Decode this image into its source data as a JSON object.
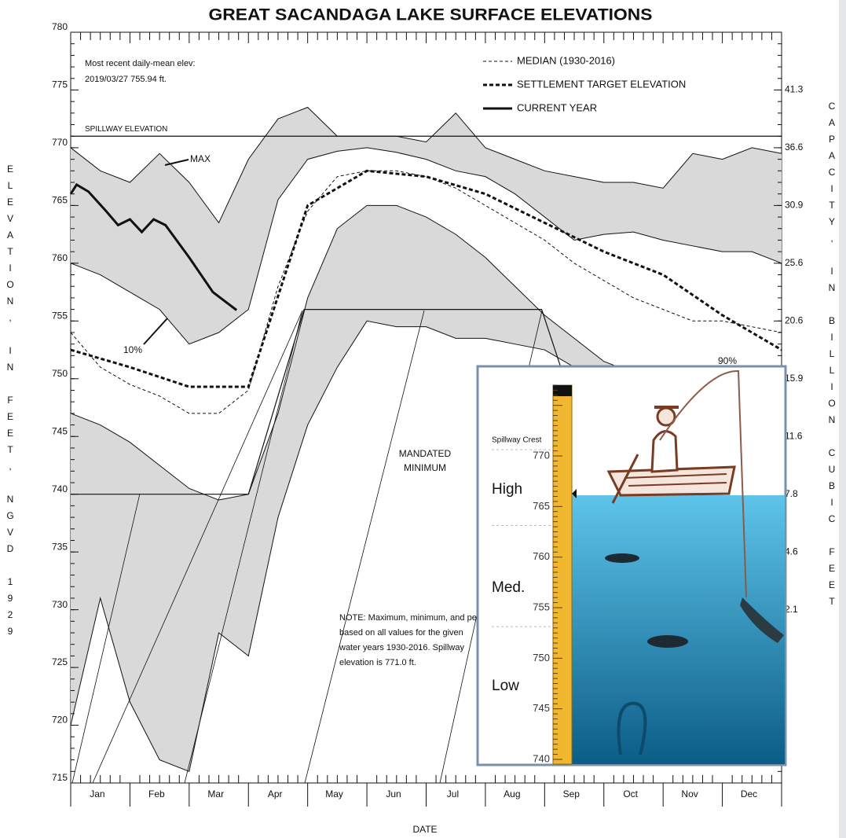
{
  "chart_data": {
    "type": "line",
    "title": "GREAT SACANDAGA LAKE SURFACE ELEVATIONS",
    "y_label": "ELEVATION, IN FEET, NGVD 1929",
    "y2_label": "CAPACITY, IN BILLION CUBIC FEET",
    "x_label": "DATE",
    "categories": [
      "Jan",
      "Feb",
      "Mar",
      "Apr",
      "May",
      "Jun",
      "Jul",
      "Aug",
      "Sep",
      "Oct",
      "Nov",
      "Dec"
    ],
    "ylim": [
      715,
      780
    ],
    "yticks": [
      715,
      720,
      725,
      730,
      735,
      740,
      745,
      750,
      755,
      760,
      765,
      770,
      775,
      780
    ],
    "capacity_ticks": [
      {
        "elevation": 775,
        "capacity": 41.3
      },
      {
        "elevation": 770,
        "capacity": 36.6
      },
      {
        "elevation": 765,
        "capacity": 30.9
      },
      {
        "elevation": 760,
        "capacity": 25.6
      },
      {
        "elevation": 755,
        "capacity": 20.6
      },
      {
        "elevation": 750,
        "capacity": 15.9
      },
      {
        "elevation": 745,
        "capacity": 11.6
      },
      {
        "elevation": 740,
        "capacity": 7.8
      },
      {
        "elevation": 735,
        "capacity": 4.6
      },
      {
        "elevation": 730,
        "capacity": 2.1
      }
    ],
    "band_color": "#d9d9d9",
    "series": [
      {
        "name": "MAX",
        "style": "thin",
        "fill": true,
        "x": [
          0,
          0.5,
          1,
          1.5,
          2,
          2.5,
          3,
          3.5,
          4,
          4.5,
          5,
          5.5,
          6,
          6.5,
          7,
          7.5,
          8,
          8.5,
          9,
          9.5,
          10,
          10.5,
          11,
          11.5,
          12
        ],
        "values": [
          770,
          768,
          767,
          769.5,
          767,
          763.5,
          769,
          772.5,
          773.5,
          771,
          771,
          771,
          770.5,
          773,
          770,
          769,
          768,
          767.5,
          767,
          767,
          766.5,
          769.5,
          769,
          770,
          769.5
        ]
      },
      {
        "name": "90%",
        "style": "thin",
        "x": [
          0,
          0.5,
          1,
          1.5,
          2,
          2.5,
          3,
          3.5,
          4,
          4.5,
          5,
          5.5,
          6,
          6.5,
          7,
          7.5,
          8,
          8.5,
          9,
          9.5,
          10,
          10.5,
          11,
          11.5,
          12
        ],
        "values": [
          760,
          759,
          757.5,
          756,
          753,
          754,
          756,
          765.5,
          769,
          769.7,
          770,
          769.6,
          769,
          768,
          767.5,
          766,
          764,
          762,
          762.5,
          762.7,
          762,
          761.5,
          761,
          761,
          760
        ]
      },
      {
        "name": "10%",
        "style": "thin",
        "fill": true,
        "x": [
          0,
          0.5,
          1,
          1.5,
          2,
          2.5,
          3,
          3.5,
          4,
          4.5,
          5,
          5.5,
          6,
          6.5,
          7,
          7.5,
          8,
          8.5,
          9,
          9.5,
          10,
          10.5,
          11,
          11.5,
          12
        ],
        "values": [
          747,
          746,
          744.5,
          742.5,
          740.5,
          739.5,
          740,
          747,
          757,
          763,
          765,
          765,
          764,
          762.5,
          760.5,
          758,
          755.5,
          753.5,
          751.5,
          750.5,
          749,
          748,
          747.5,
          747,
          746
        ]
      },
      {
        "style": "thin",
        "x": [
          0,
          0.5,
          1,
          1.5,
          2,
          2.5,
          3,
          3.5,
          4,
          4.5,
          5,
          5.5,
          6,
          6.5,
          7,
          7.5,
          8,
          8.5,
          9,
          9.5,
          10,
          10.5,
          11,
          11.5,
          12
        ],
        "values": [
          720,
          731,
          722,
          717,
          716,
          728,
          726,
          738,
          746,
          751,
          755,
          754.5,
          754.5,
          753.5,
          753.5,
          753,
          752.5,
          751,
          750,
          749,
          748,
          747,
          746.5,
          746,
          745
        ]
      },
      {
        "name": "MEDIAN (1930-2016)",
        "style": "dash",
        "legend": true,
        "x": [
          0,
          0.5,
          1,
          1.5,
          2,
          2.5,
          3,
          3.5,
          4,
          4.5,
          5,
          5.5,
          6,
          6.5,
          7,
          7.5,
          8,
          8.5,
          9,
          9.5,
          10,
          10.5,
          11,
          11.5,
          12
        ],
        "values": [
          754,
          751,
          749.5,
          748.5,
          747,
          747,
          749,
          758,
          764.5,
          767.5,
          768,
          768,
          767.5,
          766.5,
          765,
          763.5,
          762,
          760,
          758.5,
          757,
          756,
          755,
          755,
          754.5,
          754
        ]
      },
      {
        "name": "SETTLEMENT TARGET ELEVATION",
        "style": "bold-dash",
        "legend": true,
        "x": [
          0,
          1,
          2,
          3,
          4,
          5,
          6,
          7,
          8,
          9,
          10,
          11,
          12
        ],
        "values": [
          752.5,
          751,
          749.3,
          749.3,
          765,
          768,
          767.5,
          766,
          763.5,
          761,
          759,
          755.5,
          752.5
        ]
      },
      {
        "name": "CURRENT YEAR",
        "style": "bold",
        "legend": true,
        "x": [
          0,
          0.1,
          0.3,
          0.6,
          0.8,
          1.0,
          1.2,
          1.4,
          1.6,
          2.0,
          2.4,
          2.8
        ],
        "values": [
          766,
          766.8,
          766.2,
          764.5,
          763.3,
          763.8,
          762.7,
          763.8,
          763.3,
          760.5,
          757.5,
          755.94
        ]
      }
    ],
    "spillway": {
      "label": "SPILLWAY ELEVATION",
      "value": 771
    },
    "mandated_minimum": {
      "label": [
        "MANDATED",
        "MINIMUM"
      ],
      "x": [
        0,
        3.0,
        3.94,
        7.95,
        8.4
      ],
      "values": [
        740,
        740,
        756,
        756,
        749
      ]
    },
    "recent_note": [
      "Most recent daily-mean elev:",
      "2019/03/27 755.94 ft."
    ],
    "note": [
      "NOTE: Maximum, minimum, and percentiles are",
      "based on all values for the given",
      "water years 1930-2016. Spillway",
      "elevation is 771.0 ft."
    ]
  },
  "inset": {
    "ruler_ticks": [
      770,
      765,
      760,
      755,
      750,
      745,
      740
    ],
    "spillway_label": "Spillway Crest",
    "levels": [
      "High",
      "Med.",
      "Low"
    ]
  }
}
